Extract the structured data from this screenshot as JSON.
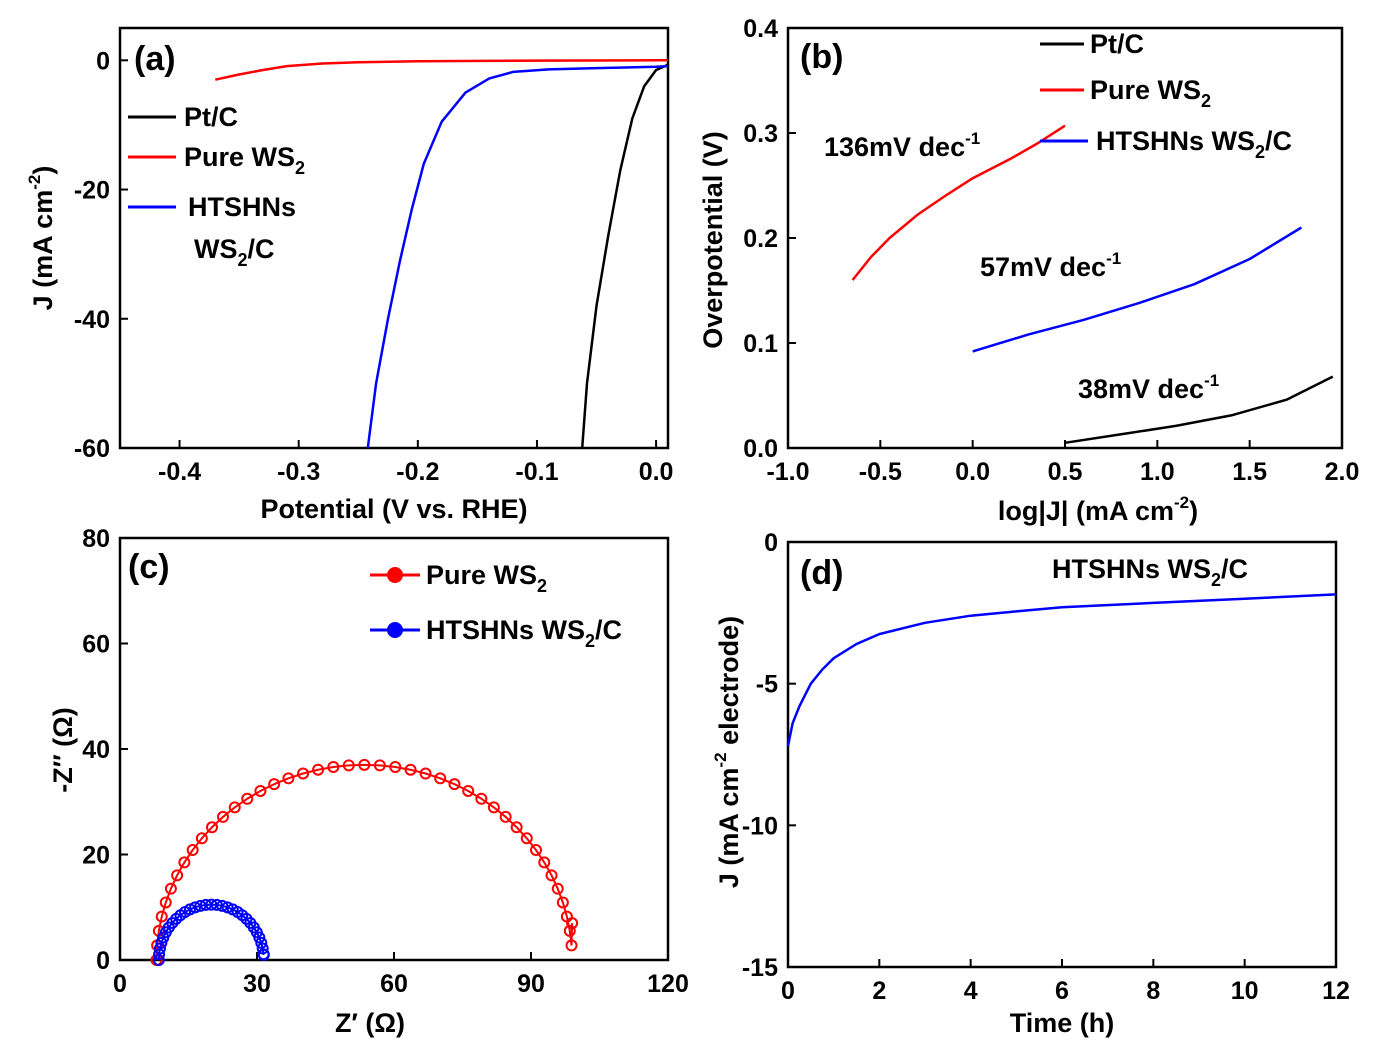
{
  "chart_data": [
    {
      "panel": "(a)",
      "type": "line",
      "xlabel": "Potential (V vs. RHE)",
      "ylabel": "J (mA cm-2)",
      "ylabel_main": "J (mA cm",
      "ylabel_sup": "-2",
      "ylabel_close": ")",
      "xlim": [
        -0.45,
        0.01
      ],
      "ylim": [
        -60,
        5
      ],
      "xticks": [
        -0.4,
        -0.3,
        -0.2,
        -0.1,
        0.0
      ],
      "xtick_labels": [
        "-0.4",
        "-0.3",
        "-0.2",
        "-0.1",
        "0.0"
      ],
      "yticks": [
        0,
        -20,
        -40,
        -60
      ],
      "ytick_labels": [
        "0",
        "-20",
        "-40",
        "-60"
      ],
      "series": [
        {
          "name": "Pt/C",
          "label": "Pt/C",
          "color": "#000000",
          "x": [
            -0.062,
            -0.058,
            -0.05,
            -0.04,
            -0.03,
            -0.02,
            -0.01,
            0.0,
            0.01
          ],
          "y": [
            -60,
            -50,
            -38,
            -27,
            -17,
            -9,
            -4,
            -1.5,
            -0.7
          ]
        },
        {
          "name": "Pure WS2",
          "label": "Pure WS",
          "sub": "2",
          "color": "#ff0000",
          "x": [
            -0.37,
            -0.35,
            -0.33,
            -0.31,
            -0.28,
            -0.25,
            -0.2,
            -0.1,
            0.0,
            0.01
          ],
          "y": [
            -3.0,
            -2.2,
            -1.5,
            -0.9,
            -0.5,
            -0.3,
            -0.15,
            -0.05,
            0,
            0
          ]
        },
        {
          "name": "HTSHNs WS2/C",
          "label_line1": "HTSHNs",
          "label_line2": "WS",
          "sub": "2",
          "label_line2_end": "/C",
          "color": "#0000ff",
          "x": [
            -0.242,
            -0.235,
            -0.225,
            -0.215,
            -0.205,
            -0.195,
            -0.18,
            -0.16,
            -0.14,
            -0.12,
            -0.09,
            -0.05,
            0.0,
            0.01
          ],
          "y": [
            -60,
            -50,
            -40,
            -31,
            -23,
            -16,
            -9.5,
            -5,
            -2.8,
            -1.8,
            -1.4,
            -1.2,
            -1.0,
            -0.9
          ]
        }
      ]
    },
    {
      "panel": "(b)",
      "type": "line",
      "xlabel": "log|J| (mA cm-2)",
      "xlabel_main": "log|J| (mA cm",
      "xlabel_sup": "-2",
      "xlabel_close": ")",
      "ylabel": "Overpotential (V)",
      "xlim": [
        -1.0,
        2.0
      ],
      "ylim": [
        0.0,
        0.4
      ],
      "xticks": [
        -1.0,
        -0.5,
        0.0,
        0.5,
        1.0,
        1.5,
        2.0
      ],
      "xtick_labels": [
        "-1.0",
        "-0.5",
        "0.0",
        "0.5",
        "1.0",
        "1.5",
        "2.0"
      ],
      "yticks": [
        0.0,
        0.1,
        0.2,
        0.3,
        0.4
      ],
      "ytick_labels": [
        "0.0",
        "0.1",
        "0.2",
        "0.3",
        "0.4"
      ],
      "series": [
        {
          "name": "Pt/C",
          "label": "Pt/C",
          "color": "#000000",
          "x": [
            0.5,
            0.8,
            1.1,
            1.4,
            1.7,
            1.95
          ],
          "y": [
            0.005,
            0.013,
            0.021,
            0.031,
            0.046,
            0.068
          ]
        },
        {
          "name": "Pure WS2",
          "label": "Pure WS",
          "sub": "2",
          "color": "#ff0000",
          "x": [
            -0.65,
            -0.55,
            -0.45,
            -0.3,
            -0.15,
            0.0,
            0.2,
            0.35,
            0.5
          ],
          "y": [
            0.16,
            0.182,
            0.2,
            0.222,
            0.24,
            0.257,
            0.275,
            0.29,
            0.307
          ]
        },
        {
          "name": "HTSHNs WS2/C",
          "label": "HTSHNs WS",
          "sub": "2",
          "label_end": "/C",
          "color": "#0000ff",
          "x": [
            0.0,
            0.3,
            0.6,
            0.9,
            1.2,
            1.5,
            1.78
          ],
          "y": [
            0.092,
            0.108,
            0.122,
            0.138,
            0.156,
            0.18,
            0.21
          ]
        }
      ],
      "annotations": [
        {
          "text": "136mV dec",
          "sup": "-1"
        },
        {
          "text": "57mV dec",
          "sup": "-1"
        },
        {
          "text": "38mV dec",
          "sup": "-1"
        }
      ]
    },
    {
      "panel": "(c)",
      "type": "scatter",
      "xlabel": "Z′ (Ω)",
      "ylabel": "-Z″ (Ω)",
      "xlim": [
        0,
        120
      ],
      "ylim": [
        0,
        80
      ],
      "xticks": [
        0,
        30,
        60,
        90,
        120
      ],
      "xtick_labels": [
        "0",
        "30",
        "60",
        "90",
        "120"
      ],
      "yticks": [
        0,
        20,
        40,
        60,
        80
      ],
      "ytick_labels": [
        "0",
        "20",
        "40",
        "60",
        "80"
      ],
      "series": [
        {
          "name": "Pure WS2",
          "label": "Pure WS",
          "sub": "2",
          "color": "#ff0000",
          "arc": {
            "x_start": 8,
            "x_end": 99,
            "peak": 37,
            "n": 42
          }
        },
        {
          "name": "HTSHNs WS2/C",
          "label": "HTSHNs WS",
          "sub": "2",
          "label_end": "/C",
          "color": "#0000ff",
          "arc": {
            "x_start": 8.5,
            "x_end": 31.5,
            "peak": 10.5,
            "n": 30
          }
        }
      ]
    },
    {
      "panel": "(d)",
      "type": "line",
      "xlabel": "Time (h)",
      "ylabel": "J (mA cm-2 electrode)",
      "ylabel_main": "J (mA cm",
      "ylabel_sup": "-2",
      "ylabel_rest": " electrode)",
      "xlim": [
        0,
        12
      ],
      "ylim": [
        -15,
        0
      ],
      "xticks": [
        0,
        2,
        4,
        6,
        8,
        10,
        12
      ],
      "xtick_labels": [
        "0",
        "2",
        "4",
        "6",
        "8",
        "10",
        "12"
      ],
      "yticks": [
        0,
        -5,
        -10,
        -15
      ],
      "ytick_labels": [
        "0",
        "-5",
        "-10",
        "-15"
      ],
      "series": [
        {
          "name": "HTSHNs WS2/C",
          "label": "HTSHNs WS",
          "sub": "2",
          "label_end": "/C",
          "color": "#0000ff",
          "x": [
            0,
            0.1,
            0.25,
            0.5,
            0.75,
            1,
            1.5,
            2,
            3,
            4,
            5,
            6,
            8,
            10,
            12
          ],
          "y": [
            -7.2,
            -6.4,
            -5.8,
            -5.0,
            -4.5,
            -4.1,
            -3.6,
            -3.25,
            -2.85,
            -2.6,
            -2.45,
            -2.3,
            -2.15,
            -2.0,
            -1.85
          ]
        }
      ]
    }
  ]
}
